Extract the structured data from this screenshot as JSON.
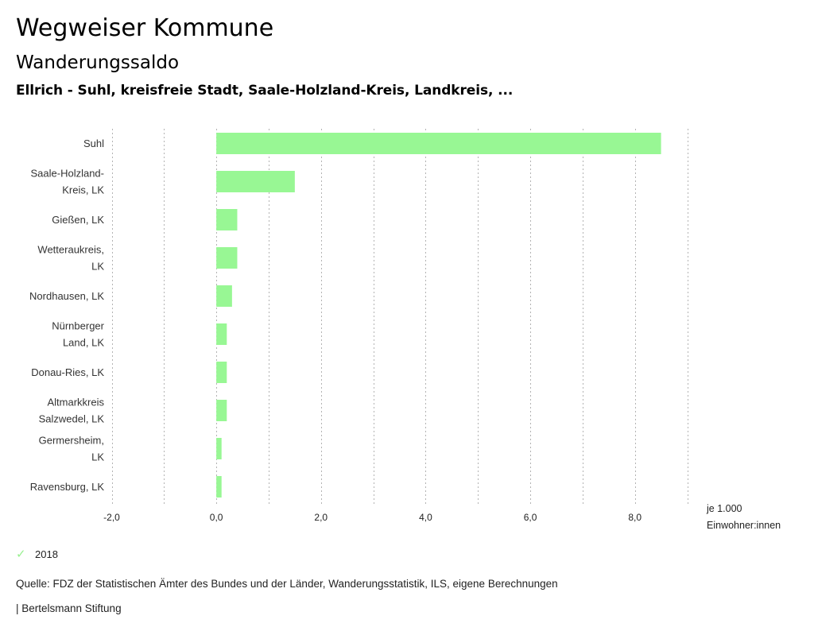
{
  "header": {
    "title": "Wegweiser Kommune",
    "subtitle": "Wanderungssaldo",
    "region": "Ellrich - Suhl, kreisfreie Stadt, Saale-Holzland-Kreis, Landkreis, ..."
  },
  "chart_data": {
    "type": "bar",
    "orientation": "horizontal",
    "title": "Wanderungssaldo",
    "categories": [
      [
        "Suhl"
      ],
      [
        "Saale-Holzland-",
        "Kreis, LK"
      ],
      [
        "Gießen, LK"
      ],
      [
        "Wetteraukreis,",
        "LK"
      ],
      [
        "Nordhausen, LK"
      ],
      [
        "Nürnberger",
        "Land, LK"
      ],
      [
        "Donau-Ries, LK"
      ],
      [
        "Altmarkkreis",
        "Salzwedel, LK"
      ],
      [
        "Germersheim,",
        "LK"
      ],
      [
        "Ravensburg, LK"
      ]
    ],
    "series": [
      {
        "name": "2018",
        "color": "#98f794",
        "values": [
          8.5,
          1.5,
          0.4,
          0.4,
          0.3,
          0.2,
          0.2,
          0.2,
          0.1,
          0.1
        ]
      }
    ],
    "xlim": [
      -2,
      9
    ],
    "xticks": [
      -2,
      0,
      2,
      4,
      6,
      8
    ],
    "xtick_labels": [
      "-2,0",
      "0,0",
      "2,0",
      "4,0",
      "6,0",
      "8,0"
    ],
    "grid_step": 1,
    "grid": true,
    "xlabel": [
      "je 1.000",
      "Einwohner:innen"
    ],
    "legend": {
      "position": "bottom-left",
      "entries": [
        "2018"
      ]
    }
  },
  "legend": {
    "label": "2018",
    "icon": "check-icon"
  },
  "footer": {
    "source": "Quelle: FDZ der Statistischen Ämter des Bundes und der Länder, Wanderungsstatistik, ILS, eigene Berechnungen",
    "brand": "| Bertelsmann Stiftung"
  }
}
